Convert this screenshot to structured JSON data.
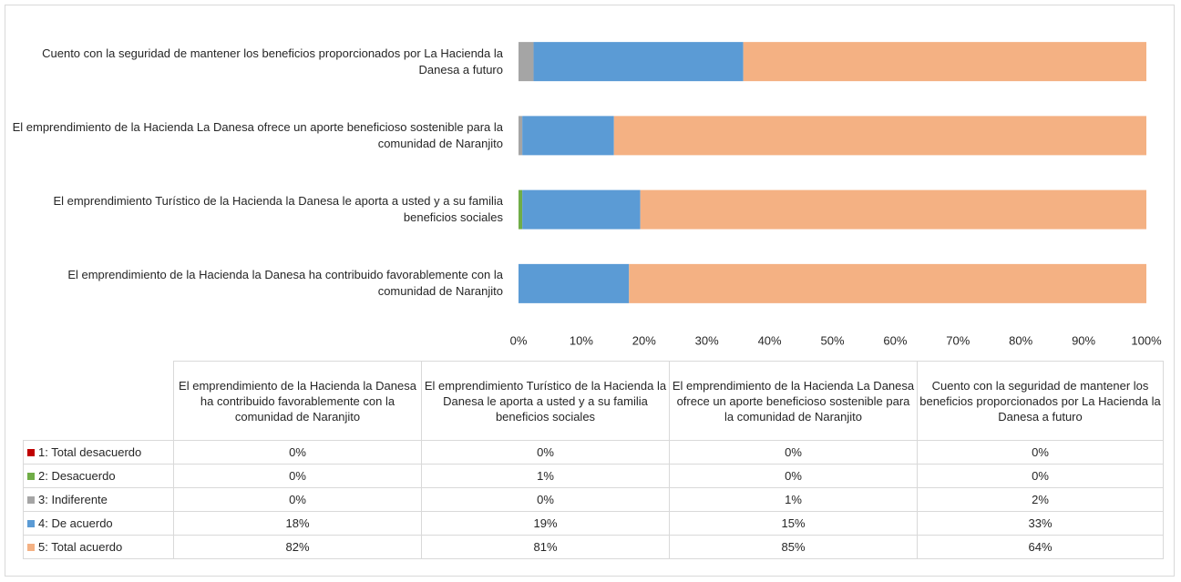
{
  "chart_data": {
    "type": "stacked_barh",
    "categories": [
      "El emprendimiento de la Hacienda la Danesa ha contribuido favorablemente con la comunidad de Naranjito",
      "El emprendimiento Turístico de la Hacienda la Danesa le aporta a usted y a su familia beneficios sociales",
      "El emprendimiento de la Hacienda La Danesa ofrece un aporte beneficioso sostenible para la comunidad de Naranjito",
      "Cuento con la seguridad de mantener los beneficios proporcionados por La Hacienda la Danesa a futuro"
    ],
    "series": [
      {
        "name": "1: Total desacuerdo",
        "color": "#c00000",
        "values": [
          0,
          0,
          0,
          0
        ],
        "value_labels": [
          "0%",
          "0%",
          "0%",
          "0%"
        ]
      },
      {
        "name": "2: Desacuerdo",
        "color": "#70ad47",
        "values": [
          0,
          0.6,
          0,
          0
        ],
        "value_labels": [
          "0%",
          "1%",
          "0%",
          "0%"
        ]
      },
      {
        "name": "3: Indiferente",
        "color": "#a5a5a5",
        "values": [
          0,
          0,
          0.6,
          2.4
        ],
        "value_labels": [
          "0%",
          "0%",
          "1%",
          "2%"
        ]
      },
      {
        "name": "4: De acuerdo",
        "color": "#5b9bd5",
        "values": [
          17.6,
          18.8,
          14.6,
          33.4
        ],
        "value_labels": [
          "18%",
          "19%",
          "15%",
          "33%"
        ]
      },
      {
        "name": "5: Total acuerdo",
        "color": "#f4b183",
        "values": [
          82.4,
          80.6,
          84.8,
          64.2
        ],
        "value_labels": [
          "82%",
          "81%",
          "85%",
          "64%"
        ]
      }
    ],
    "xlim": [
      0,
      100
    ],
    "xticks": [
      {
        "value": 0,
        "label": "0%"
      },
      {
        "value": 10,
        "label": "10%"
      },
      {
        "value": 20,
        "label": "20%"
      },
      {
        "value": 30,
        "label": "30%"
      },
      {
        "value": 40,
        "label": "40%"
      },
      {
        "value": 50,
        "label": "50%"
      },
      {
        "value": 60,
        "label": "60%"
      },
      {
        "value": 70,
        "label": "70%"
      },
      {
        "value": 80,
        "label": "80%"
      },
      {
        "value": 90,
        "label": "90%"
      },
      {
        "value": 100,
        "label": "100%"
      }
    ],
    "grid": false
  }
}
